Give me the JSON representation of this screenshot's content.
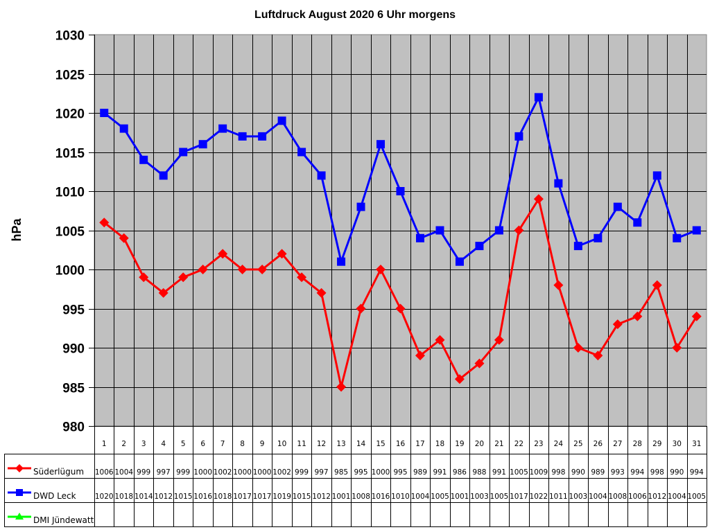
{
  "chart_data": {
    "type": "line",
    "title": "Luftdruck August 2020 6 Uhr morgens",
    "xlabel": "",
    "ylabel": "hPa",
    "ylim": [
      980,
      1030
    ],
    "yticks": [
      980,
      985,
      990,
      995,
      1000,
      1005,
      1010,
      1015,
      1020,
      1025,
      1030
    ],
    "grid": true,
    "legend_position": "data-table-left",
    "categories": [
      "1",
      "2",
      "3",
      "4",
      "5",
      "6",
      "7",
      "8",
      "9",
      "10",
      "11",
      "12",
      "13",
      "14",
      "15",
      "16",
      "17",
      "18",
      "19",
      "20",
      "21",
      "22",
      "23",
      "24",
      "25",
      "26",
      "27",
      "28",
      "29",
      "30",
      "31"
    ],
    "series": [
      {
        "name": "Süderlügum",
        "color": "#ff0000",
        "marker": "diamond",
        "values": [
          1006,
          1004,
          999,
          997,
          999,
          1000,
          1002,
          1000,
          1000,
          1002,
          999,
          997,
          985,
          995,
          1000,
          995,
          989,
          991,
          986,
          988,
          991,
          1005,
          1009,
          998,
          990,
          989,
          993,
          994,
          998,
          990,
          994
        ]
      },
      {
        "name": "DWD Leck",
        "color": "#0000ff",
        "marker": "square",
        "values": [
          1020,
          1018,
          1014,
          1012,
          1015,
          1016,
          1018,
          1017,
          1017,
          1019,
          1015,
          1012,
          1001,
          1008,
          1016,
          1010,
          1004,
          1005,
          1001,
          1003,
          1005,
          1017,
          1022,
          1011,
          1003,
          1004,
          1008,
          1006,
          1012,
          1004,
          1005
        ]
      },
      {
        "name": "DMI Jündewatt",
        "color": "#00ff00",
        "marker": "triangle",
        "values": []
      }
    ]
  },
  "colors": {
    "plot_background": "#c0c0c0",
    "gridline": "#000000",
    "page_background": "#ffffff"
  }
}
